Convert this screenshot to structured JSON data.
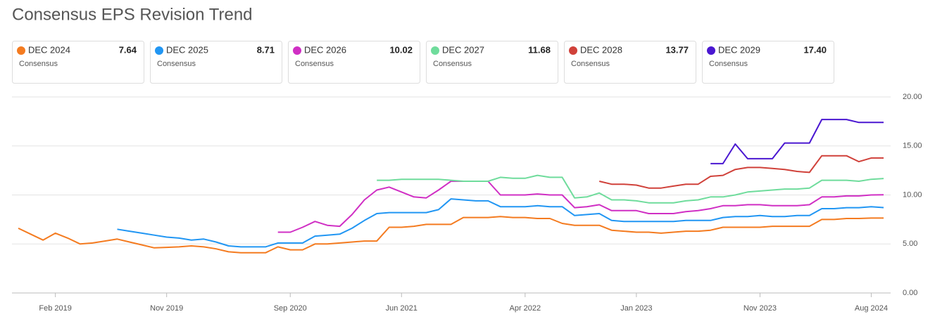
{
  "chart_data": {
    "type": "line",
    "title": "Consensus EPS Revision Trend",
    "x": [
      "2018-11",
      "2018-12",
      "2019-01",
      "2019-02",
      "2019-03",
      "2019-04",
      "2019-05",
      "2019-06",
      "2019-07",
      "2019-08",
      "2019-09",
      "2019-10",
      "2019-11",
      "2019-12",
      "2020-01",
      "2020-02",
      "2020-03",
      "2020-04",
      "2020-05",
      "2020-06",
      "2020-07",
      "2020-08",
      "2020-09",
      "2020-10",
      "2020-11",
      "2020-12",
      "2021-01",
      "2021-02",
      "2021-03",
      "2021-04",
      "2021-05",
      "2021-06",
      "2021-07",
      "2021-08",
      "2021-09",
      "2021-10",
      "2021-11",
      "2021-12",
      "2022-01",
      "2022-02",
      "2022-03",
      "2022-04",
      "2022-05",
      "2022-06",
      "2022-07",
      "2022-08",
      "2022-09",
      "2022-10",
      "2022-11",
      "2022-12",
      "2023-01",
      "2023-02",
      "2023-03",
      "2023-04",
      "2023-05",
      "2023-06",
      "2023-07",
      "2023-08",
      "2023-09",
      "2023-10",
      "2023-11",
      "2023-12",
      "2024-01",
      "2024-02",
      "2024-03",
      "2024-04",
      "2024-05",
      "2024-06",
      "2024-07",
      "2024-08",
      "2024-09"
    ],
    "xlim": [
      "2018-11",
      "2024-09"
    ],
    "xticks": [
      {
        "value": "2019-02",
        "label": "Feb 2019"
      },
      {
        "value": "2019-11",
        "label": "Nov 2019"
      },
      {
        "value": "2020-09",
        "label": "Sep 2020"
      },
      {
        "value": "2021-06",
        "label": "Jun 2021"
      },
      {
        "value": "2022-04",
        "label": "Apr 2022"
      },
      {
        "value": "2023-01",
        "label": "Jan 2023"
      },
      {
        "value": "2023-11",
        "label": "Nov 2023"
      },
      {
        "value": "2024-08",
        "label": "Aug 2024"
      }
    ],
    "ylim": [
      0,
      20
    ],
    "yticks": [
      {
        "value": 0,
        "label": "0.00"
      },
      {
        "value": 5,
        "label": "5.00"
      },
      {
        "value": 10,
        "label": "10.00"
      },
      {
        "value": 15,
        "label": "15.00"
      },
      {
        "value": 20,
        "label": "20.00"
      }
    ],
    "grid": true,
    "series": [
      {
        "name": "DEC 2024",
        "color": "#f47b20",
        "sub": "Consensus",
        "current": {
          "value": 7.64,
          "label": "7.64"
        },
        "values": [
          6.6,
          6.0,
          5.4,
          6.1,
          5.6,
          5.0,
          5.1,
          5.3,
          5.5,
          5.2,
          4.9,
          4.6,
          4.65,
          4.7,
          4.8,
          4.7,
          4.5,
          4.2,
          4.1,
          4.1,
          4.1,
          4.7,
          4.4,
          4.4,
          5.0,
          5.0,
          5.1,
          5.2,
          5.3,
          5.3,
          6.7,
          6.7,
          6.8,
          7.0,
          7.0,
          7.0,
          7.7,
          7.7,
          7.7,
          7.8,
          7.7,
          7.7,
          7.6,
          7.6,
          7.1,
          6.9,
          6.9,
          6.9,
          6.4,
          6.3,
          6.2,
          6.2,
          6.1,
          6.2,
          6.3,
          6.3,
          6.4,
          6.7,
          6.7,
          6.7,
          6.7,
          6.8,
          6.8,
          6.8,
          6.8,
          7.5,
          7.5,
          7.6,
          7.6,
          7.64,
          7.64
        ]
      },
      {
        "name": "DEC 2025",
        "color": "#2196f3",
        "sub": "Consensus",
        "current": {
          "value": 8.71,
          "label": "8.71"
        },
        "values": [
          null,
          null,
          null,
          null,
          null,
          null,
          null,
          null,
          6.5,
          6.3,
          6.1,
          5.9,
          5.7,
          5.6,
          5.4,
          5.5,
          5.2,
          4.8,
          4.7,
          4.7,
          4.7,
          5.1,
          5.1,
          5.1,
          5.8,
          5.9,
          6.0,
          6.6,
          7.4,
          8.1,
          8.2,
          8.2,
          8.2,
          8.2,
          8.5,
          9.6,
          9.5,
          9.4,
          9.4,
          8.8,
          8.8,
          8.8,
          8.9,
          8.8,
          8.8,
          7.9,
          8.0,
          8.1,
          7.4,
          7.3,
          7.3,
          7.3,
          7.3,
          7.3,
          7.4,
          7.4,
          7.4,
          7.7,
          7.8,
          7.8,
          7.9,
          7.8,
          7.8,
          7.9,
          7.9,
          8.6,
          8.6,
          8.7,
          8.7,
          8.8,
          8.71
        ]
      },
      {
        "name": "DEC 2026",
        "color": "#d02fc4",
        "sub": "Consensus",
        "current": {
          "value": 10.02,
          "label": "10.02"
        },
        "values": [
          null,
          null,
          null,
          null,
          null,
          null,
          null,
          null,
          null,
          null,
          null,
          null,
          null,
          null,
          null,
          null,
          null,
          null,
          null,
          null,
          null,
          6.2,
          6.2,
          6.7,
          7.3,
          6.9,
          6.8,
          8.0,
          9.5,
          10.5,
          10.8,
          10.3,
          9.8,
          9.7,
          10.5,
          11.4,
          11.4,
          11.4,
          11.4,
          10.0,
          10.0,
          10.0,
          10.1,
          10.0,
          10.0,
          8.7,
          8.8,
          9.0,
          8.4,
          8.4,
          8.4,
          8.1,
          8.1,
          8.1,
          8.3,
          8.4,
          8.6,
          8.9,
          8.9,
          9.0,
          9.0,
          8.9,
          8.9,
          8.9,
          9.0,
          9.8,
          9.8,
          9.9,
          9.9,
          10.0,
          10.02
        ]
      },
      {
        "name": "DEC 2027",
        "color": "#6fdc9c",
        "sub": "Consensus",
        "current": {
          "value": 11.68,
          "label": "11.68"
        },
        "values": [
          null,
          null,
          null,
          null,
          null,
          null,
          null,
          null,
          null,
          null,
          null,
          null,
          null,
          null,
          null,
          null,
          null,
          null,
          null,
          null,
          null,
          null,
          null,
          null,
          null,
          null,
          null,
          null,
          null,
          11.5,
          11.5,
          11.6,
          11.6,
          11.6,
          11.6,
          11.5,
          11.4,
          11.4,
          11.4,
          11.8,
          11.7,
          11.7,
          12.0,
          11.8,
          11.8,
          9.7,
          9.8,
          10.2,
          9.5,
          9.5,
          9.4,
          9.2,
          9.2,
          9.2,
          9.4,
          9.5,
          9.8,
          9.8,
          10.0,
          10.3,
          10.4,
          10.5,
          10.6,
          10.6,
          10.7,
          11.5,
          11.5,
          11.5,
          11.4,
          11.6,
          11.68
        ]
      },
      {
        "name": "DEC 2028",
        "color": "#d0413a",
        "sub": "Consensus",
        "current": {
          "value": 13.77,
          "label": "13.77"
        },
        "values": [
          null,
          null,
          null,
          null,
          null,
          null,
          null,
          null,
          null,
          null,
          null,
          null,
          null,
          null,
          null,
          null,
          null,
          null,
          null,
          null,
          null,
          null,
          null,
          null,
          null,
          null,
          null,
          null,
          null,
          null,
          null,
          null,
          null,
          null,
          null,
          null,
          null,
          null,
          null,
          null,
          null,
          null,
          null,
          null,
          null,
          null,
          null,
          11.4,
          11.1,
          11.1,
          11.0,
          10.7,
          10.7,
          10.9,
          11.1,
          11.1,
          11.9,
          12.0,
          12.6,
          12.8,
          12.8,
          12.7,
          12.6,
          12.4,
          12.3,
          14.0,
          14.0,
          14.0,
          13.4,
          13.77,
          13.77
        ]
      },
      {
        "name": "DEC 2029",
        "color": "#4a17d1",
        "sub": "Consensus",
        "current": {
          "value": 17.4,
          "label": "17.40"
        },
        "values": [
          null,
          null,
          null,
          null,
          null,
          null,
          null,
          null,
          null,
          null,
          null,
          null,
          null,
          null,
          null,
          null,
          null,
          null,
          null,
          null,
          null,
          null,
          null,
          null,
          null,
          null,
          null,
          null,
          null,
          null,
          null,
          null,
          null,
          null,
          null,
          null,
          null,
          null,
          null,
          null,
          null,
          null,
          null,
          null,
          null,
          null,
          null,
          null,
          null,
          null,
          null,
          null,
          null,
          null,
          null,
          null,
          13.2,
          13.2,
          15.2,
          13.7,
          13.7,
          13.7,
          15.3,
          15.3,
          15.3,
          17.7,
          17.7,
          17.7,
          17.4,
          17.4,
          17.4
        ]
      }
    ]
  }
}
